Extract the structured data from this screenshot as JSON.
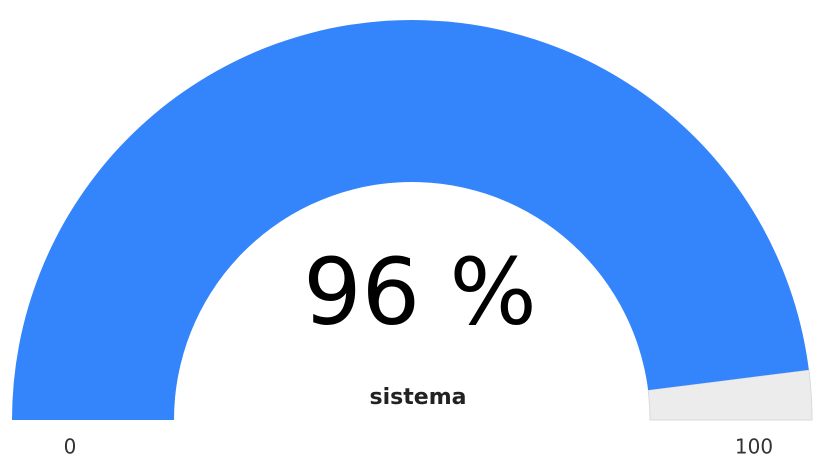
{
  "chart_data": {
    "type": "gauge",
    "categories": [
      "sistema"
    ],
    "values": [
      96
    ],
    "value_labels": [
      "96 %"
    ],
    "color": "#3485fb",
    "track_color": "#ececec",
    "ylim": [
      0,
      100
    ],
    "yticks": [
      0,
      100
    ]
  }
}
